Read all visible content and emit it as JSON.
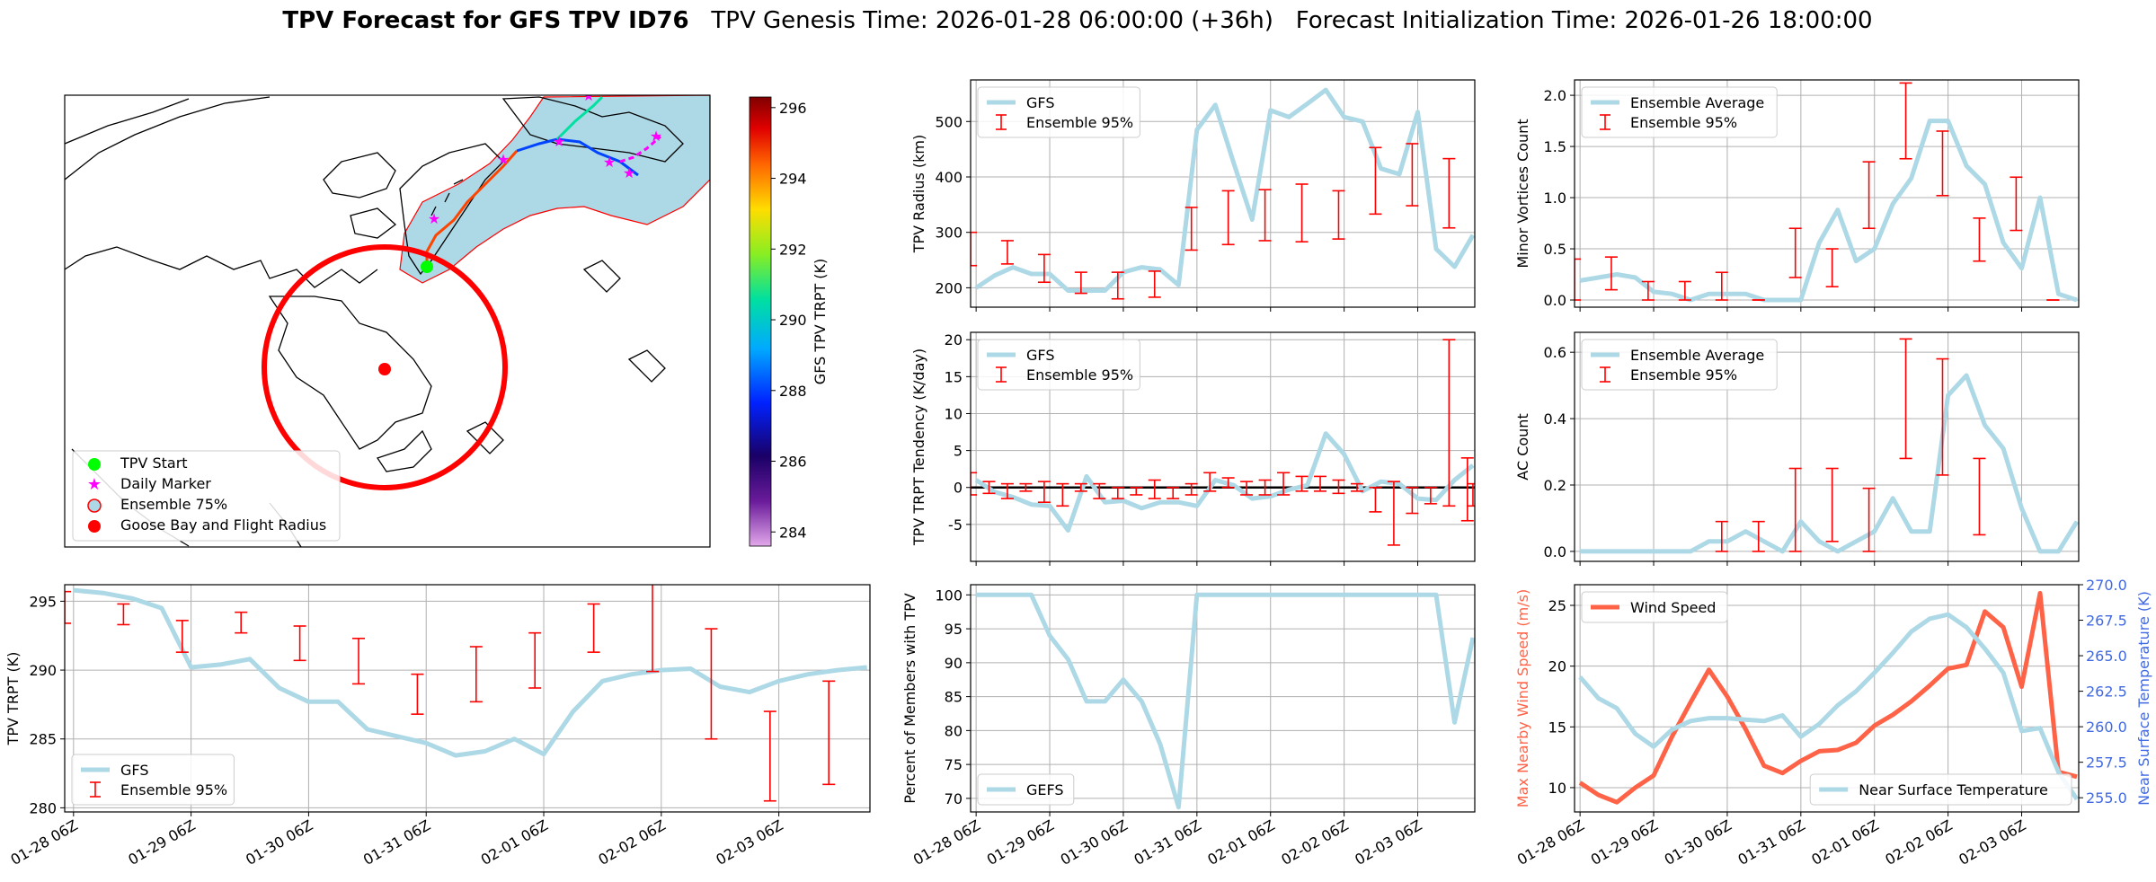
{
  "header": {
    "title_bold": "TPV Forecast for GFS TPV ID76",
    "title_rest": "TPV Genesis Time: 2026-01-28 06:00:00 (+36h)   Forecast Initialization Time: 2026-01-26 18:00:00"
  },
  "colors": {
    "gfs": "#add8e6",
    "ensemble": "#ff0000",
    "wind": "#ff6347",
    "temp": "#4169e1",
    "ocean": "#add8e6",
    "goose": "#ff0000",
    "start": "#00ff00",
    "marker": "#ff00ff"
  },
  "map": {
    "legend": [
      "TPV Start",
      "Daily Marker",
      "Ensemble 75%",
      "Goose Bay and Flight Radius"
    ],
    "colorbar": {
      "label": "GFS TPV TRPT (K)",
      "ticks": [
        "284",
        "286",
        "288",
        "290",
        "292",
        "294",
        "296"
      ],
      "range": [
        283.6,
        296.3
      ]
    }
  },
  "x_ticks": [
    "01-28 06Z",
    "01-29 06Z",
    "01-30 06Z",
    "01-31 06Z",
    "02-01 06Z",
    "02-02 06Z",
    "02-03 06Z"
  ],
  "chart_data": [
    {
      "id": "trpt",
      "type": "line",
      "ylabel": "TPV TRPT (K)",
      "ylim": [
        279.7,
        296.2
      ],
      "yticks": [
        280,
        285,
        290,
        295
      ],
      "xlim": [
        -0.3,
        27.1
      ],
      "legend": [
        "GFS",
        "Ensemble 95%"
      ],
      "series": [
        {
          "name": "GFS",
          "x": [
            0,
            1,
            2,
            3,
            4,
            5,
            6,
            7,
            8,
            9,
            10,
            11,
            12,
            13,
            14,
            15,
            16,
            17,
            18,
            19,
            20,
            21,
            22,
            23,
            24,
            25,
            26,
            27
          ],
          "values": [
            295.8,
            295.6,
            295.2,
            294.5,
            290.2,
            290.4,
            290.8,
            288.7,
            287.7,
            287.7,
            285.7,
            285.2,
            284.7,
            283.8,
            284.1,
            285.0,
            283.9,
            287.0,
            289.2,
            289.7,
            290.0,
            290.1,
            288.8,
            288.4,
            289.2,
            289.7,
            290.0,
            290.2
          ]
        }
      ],
      "errorbars": [
        {
          "x": -0.3,
          "low": 293.4,
          "high": 295.7
        },
        {
          "x": 1.7,
          "low": 293.3,
          "high": 294.8
        },
        {
          "x": 3.7,
          "low": 291.3,
          "high": 293.6
        },
        {
          "x": 5.7,
          "low": 292.7,
          "high": 294.2
        },
        {
          "x": 7.7,
          "low": 290.7,
          "high": 293.2
        },
        {
          "x": 9.7,
          "low": 289.0,
          "high": 292.3
        },
        {
          "x": 11.7,
          "low": 286.8,
          "high": 289.7
        },
        {
          "x": 13.7,
          "low": 287.7,
          "high": 291.7
        },
        {
          "x": 15.7,
          "low": 288.7,
          "high": 292.7
        },
        {
          "x": 17.7,
          "low": 291.3,
          "high": 294.8
        },
        {
          "x": 19.7,
          "low": 289.9,
          "high": 296.6
        },
        {
          "x": 21.7,
          "low": 285.0,
          "high": 293.0
        },
        {
          "x": 23.7,
          "low": 280.5,
          "high": 287.0
        },
        {
          "x": 25.7,
          "low": 281.7,
          "high": 289.2
        }
      ]
    },
    {
      "id": "radius",
      "type": "line",
      "ylabel": "TPV Radius (km)",
      "ylim": [
        165,
        575
      ],
      "yticks": [
        200,
        300,
        400,
        500
      ],
      "xlim": [
        -0.3,
        27.1
      ],
      "legend": [
        "GFS",
        "Ensemble 95%"
      ],
      "series": [
        {
          "name": "GFS",
          "x": [
            0,
            1,
            2,
            3,
            4,
            5,
            6,
            7,
            8,
            9,
            10,
            11,
            12,
            13,
            14,
            15,
            16,
            17,
            18,
            19,
            20,
            21,
            22,
            23,
            24,
            25,
            26,
            27
          ],
          "values": [
            200,
            222,
            237,
            225,
            225,
            195,
            195,
            195,
            228,
            237,
            233,
            205,
            485,
            530,
            425,
            323,
            520,
            508,
            532,
            557,
            508,
            500,
            415,
            405,
            517,
            270,
            238,
            295
          ]
        }
      ],
      "errorbars": [
        {
          "x": -0.3,
          "low": 240,
          "high": 300
        },
        {
          "x": 1.7,
          "low": 243,
          "high": 285
        },
        {
          "x": 3.7,
          "low": 210,
          "high": 260
        },
        {
          "x": 5.7,
          "low": 190,
          "high": 228
        },
        {
          "x": 7.7,
          "low": 180,
          "high": 228
        },
        {
          "x": 9.7,
          "low": 183,
          "high": 230
        },
        {
          "x": 11.7,
          "low": 268,
          "high": 345
        },
        {
          "x": 13.7,
          "low": 278,
          "high": 375
        },
        {
          "x": 15.7,
          "low": 285,
          "high": 377
        },
        {
          "x": 17.7,
          "low": 283,
          "high": 387
        },
        {
          "x": 19.7,
          "low": 288,
          "high": 375
        },
        {
          "x": 21.7,
          "low": 333,
          "high": 453
        },
        {
          "x": 23.7,
          "low": 348,
          "high": 460
        },
        {
          "x": 25.7,
          "low": 308,
          "high": 433
        }
      ]
    },
    {
      "id": "tend",
      "type": "line",
      "ylabel": "TPV TRPT Tendency (K/day)",
      "ylim": [
        -10,
        21
      ],
      "yticks": [
        -5,
        0,
        5,
        10,
        15,
        20
      ],
      "xlim": [
        -0.3,
        27.1
      ],
      "legend": [
        "GFS",
        "Ensemble 95%"
      ],
      "zero_line": true,
      "series": [
        {
          "name": "GFS",
          "x": [
            0,
            1,
            2,
            3,
            4,
            5,
            6,
            7,
            8,
            9,
            10,
            11,
            12,
            13,
            14,
            15,
            16,
            17,
            18,
            19,
            20,
            21,
            22,
            23,
            24,
            25,
            26,
            27
          ],
          "values": [
            1.0,
            -0.6,
            -1.3,
            -2.3,
            -2.5,
            -5.8,
            1.5,
            -2.0,
            -1.8,
            -2.8,
            -2.0,
            -2.0,
            -2.5,
            1.0,
            0.3,
            -1.5,
            -1.2,
            -0.3,
            0.3,
            7.3,
            4.5,
            -0.5,
            0.8,
            0.5,
            -1.5,
            -1.7,
            1.0,
            3.0
          ]
        }
      ],
      "errorbars": [
        {
          "x": -0.3,
          "low": -1.0,
          "high": 2.0
        },
        {
          "x": 0.7,
          "low": -0.8,
          "high": 0.8
        },
        {
          "x": 1.7,
          "low": -1.5,
          "high": 0.5
        },
        {
          "x": 2.7,
          "low": -0.5,
          "high": 0.5
        },
        {
          "x": 3.7,
          "low": -2.0,
          "high": 0.8
        },
        {
          "x": 4.7,
          "low": -2.5,
          "high": 0.5
        },
        {
          "x": 5.7,
          "low": -0.5,
          "high": 0.5
        },
        {
          "x": 6.7,
          "low": -1.5,
          "high": 0.5
        },
        {
          "x": 7.7,
          "low": -1.5,
          "high": 0.0
        },
        {
          "x": 8.7,
          "low": -1.0,
          "high": 0.0
        },
        {
          "x": 9.7,
          "low": -1.5,
          "high": 1.0
        },
        {
          "x": 10.7,
          "low": -1.5,
          "high": 0.0
        },
        {
          "x": 11.7,
          "low": -1.0,
          "high": 0.5
        },
        {
          "x": 12.7,
          "low": -0.5,
          "high": 2.0
        },
        {
          "x": 13.7,
          "low": 0.0,
          "high": 1.3
        },
        {
          "x": 14.7,
          "low": -1.0,
          "high": 0.8
        },
        {
          "x": 15.7,
          "low": -1.0,
          "high": 1.0
        },
        {
          "x": 16.7,
          "low": -1.0,
          "high": 2.0
        },
        {
          "x": 17.7,
          "low": -0.5,
          "high": 1.5
        },
        {
          "x": 18.7,
          "low": -0.5,
          "high": 1.5
        },
        {
          "x": 19.7,
          "low": -0.8,
          "high": 1.0
        },
        {
          "x": 20.7,
          "low": -0.5,
          "high": 0.5
        },
        {
          "x": 21.7,
          "low": -3.3,
          "high": 0.0
        },
        {
          "x": 22.7,
          "low": -7.8,
          "high": 0.8
        },
        {
          "x": 23.7,
          "low": -3.5,
          "high": 0.0
        },
        {
          "x": 24.7,
          "low": -2.2,
          "high": 0.0
        },
        {
          "x": 25.7,
          "low": -2.5,
          "high": 20.0
        },
        {
          "x": 26.7,
          "low": -4.5,
          "high": 4.0
        },
        {
          "x": 27.0,
          "low": -2.5,
          "high": 0.5
        }
      ]
    },
    {
      "id": "members",
      "type": "line",
      "ylabel": "Percent of Members with TPV",
      "ylim": [
        68,
        101.5
      ],
      "yticks": [
        70,
        75,
        80,
        85,
        90,
        95,
        100
      ],
      "xlim": [
        -0.3,
        27.1
      ],
      "legend": [
        "GEFS"
      ],
      "series": [
        {
          "name": "GEFS",
          "x": [
            0,
            1,
            2,
            3,
            4,
            5,
            6,
            7,
            8,
            9,
            10,
            11,
            12,
            13,
            14,
            15,
            16,
            17,
            18,
            19,
            20,
            21,
            22,
            23,
            24,
            25,
            26,
            27
          ],
          "values": [
            100,
            100,
            100,
            100,
            94,
            90.5,
            84.3,
            84.3,
            87.5,
            84.3,
            78,
            68.7,
            100,
            100,
            100,
            100,
            100,
            100,
            100,
            100,
            100,
            100,
            100,
            100,
            100,
            100,
            81.2,
            93.7
          ]
        }
      ],
      "errorbars": []
    },
    {
      "id": "minor",
      "type": "line",
      "ylabel": "Minor Vortices Count",
      "ylim": [
        -0.07,
        2.15
      ],
      "yticks": [
        0.0,
        0.5,
        1.0,
        1.5,
        2.0
      ],
      "tick_decimals": 1,
      "xlim": [
        -0.3,
        27.1
      ],
      "legend": [
        "Ensemble Average",
        "Ensemble 95%"
      ],
      "series": [
        {
          "name": "Ensemble Average",
          "x": [
            0,
            1,
            2,
            3,
            4,
            5,
            6,
            7,
            8,
            9,
            10,
            11,
            12,
            13,
            14,
            15,
            16,
            17,
            18,
            19,
            20,
            21,
            22,
            23,
            24,
            25,
            26,
            27
          ],
          "values": [
            0.19,
            0.22,
            0.25,
            0.22,
            0.08,
            0.06,
            0.0,
            0.06,
            0.06,
            0.06,
            0.0,
            0.0,
            0.0,
            0.56,
            0.88,
            0.38,
            0.5,
            0.94,
            1.19,
            1.75,
            1.75,
            1.31,
            1.13,
            0.56,
            0.31,
            1.0,
            0.06,
            0.0
          ]
        }
      ],
      "errorbars": [
        {
          "x": -0.3,
          "low": 0.0,
          "high": 0.4
        },
        {
          "x": 1.7,
          "low": 0.1,
          "high": 0.42
        },
        {
          "x": 3.7,
          "low": 0.0,
          "high": 0.18
        },
        {
          "x": 5.7,
          "low": 0.0,
          "high": 0.18
        },
        {
          "x": 7.7,
          "low": 0.0,
          "high": 0.27
        },
        {
          "x": 9.7,
          "low": 0.0,
          "high": 0.0
        },
        {
          "x": 11.7,
          "low": 0.22,
          "high": 0.7
        },
        {
          "x": 13.7,
          "low": 0.13,
          "high": 0.5
        },
        {
          "x": 15.7,
          "low": 0.7,
          "high": 1.35
        },
        {
          "x": 17.7,
          "low": 1.38,
          "high": 2.12
        },
        {
          "x": 19.7,
          "low": 1.02,
          "high": 1.65
        },
        {
          "x": 21.7,
          "low": 0.38,
          "high": 0.8
        },
        {
          "x": 23.7,
          "low": 0.68,
          "high": 1.2
        },
        {
          "x": 25.7,
          "low": 0.0,
          "high": 0.0
        }
      ]
    },
    {
      "id": "ac",
      "type": "line",
      "ylabel": "AC Count",
      "ylim": [
        -0.03,
        0.66
      ],
      "yticks": [
        0.0,
        0.2,
        0.4,
        0.6
      ],
      "tick_decimals": 1,
      "xlim": [
        -0.3,
        27.1
      ],
      "legend": [
        "Ensemble Average",
        "Ensemble 95%"
      ],
      "series": [
        {
          "name": "Ensemble Average",
          "x": [
            0,
            1,
            2,
            3,
            4,
            5,
            6,
            7,
            8,
            9,
            10,
            11,
            12,
            13,
            14,
            15,
            16,
            17,
            18,
            19,
            20,
            21,
            22,
            23,
            24,
            25,
            26,
            27
          ],
          "values": [
            0,
            0,
            0,
            0,
            0,
            0,
            0,
            0.03,
            0.03,
            0.06,
            0.03,
            0.0,
            0.09,
            0.03,
            0.0,
            0.03,
            0.06,
            0.16,
            0.06,
            0.06,
            0.47,
            0.53,
            0.38,
            0.31,
            0.13,
            0.0,
            0.0,
            0.09
          ]
        }
      ],
      "errorbars": [
        {
          "x": 7.7,
          "low": 0.0,
          "high": 0.09
        },
        {
          "x": 9.7,
          "low": 0.0,
          "high": 0.09
        },
        {
          "x": 11.7,
          "low": 0.0,
          "high": 0.25
        },
        {
          "x": 13.7,
          "low": 0.03,
          "high": 0.25
        },
        {
          "x": 15.7,
          "low": 0.0,
          "high": 0.19
        },
        {
          "x": 17.7,
          "low": 0.28,
          "high": 0.64
        },
        {
          "x": 19.7,
          "low": 0.23,
          "high": 0.58
        },
        {
          "x": 21.7,
          "low": 0.05,
          "high": 0.28
        }
      ]
    },
    {
      "id": "wind",
      "type": "line",
      "ylabel": "Max Nearby Wind Speed (m/s)",
      "ylim": [
        8,
        26.7
      ],
      "yticks": [
        10,
        15,
        20,
        25
      ],
      "xlim": [
        -0.3,
        27.1
      ],
      "legend": [
        "Wind Speed"
      ],
      "y2label": "Near Surface Temperature (K)",
      "y2lim": [
        254.0,
        270.0
      ],
      "y2ticks": [
        "255.0",
        "257.5",
        "260.0",
        "262.5",
        "265.0",
        "267.5",
        "270.0"
      ],
      "y2legend": "Near Surface Temperature",
      "series": [
        {
          "name": "Wind Speed",
          "x": [
            0,
            1,
            2,
            3,
            4,
            5,
            6,
            7,
            8,
            9,
            10,
            11,
            12,
            13,
            14,
            15,
            16,
            17,
            18,
            19,
            20,
            21,
            22,
            23,
            24,
            25,
            26,
            27
          ],
          "values": [
            10.4,
            9.4,
            8.8,
            10.0,
            11.0,
            14.2,
            17.0,
            19.7,
            17.5,
            14.8,
            11.8,
            11.2,
            12.2,
            13.0,
            13.1,
            13.7,
            15.1,
            16.0,
            17.1,
            18.4,
            19.8,
            20.1,
            24.5,
            23.2,
            18.3,
            26.0,
            11.3,
            10.9
          ]
        },
        {
          "name": "Near Surface Temperature",
          "axis": "y2",
          "x": [
            0,
            1,
            2,
            3,
            4,
            5,
            6,
            7,
            8,
            9,
            10,
            11,
            12,
            13,
            14,
            15,
            16,
            17,
            18,
            19,
            20,
            21,
            22,
            23,
            24,
            25,
            26,
            27
          ],
          "values": [
            263.5,
            262.0,
            261.3,
            259.5,
            258.6,
            259.8,
            260.4,
            260.6,
            260.6,
            260.5,
            260.4,
            260.8,
            259.3,
            260.2,
            261.5,
            262.5,
            263.8,
            265.2,
            266.7,
            267.6,
            267.9,
            267.0,
            265.5,
            263.8,
            259.7,
            259.9,
            256.8,
            254.9
          ]
        }
      ],
      "errorbars": []
    }
  ]
}
